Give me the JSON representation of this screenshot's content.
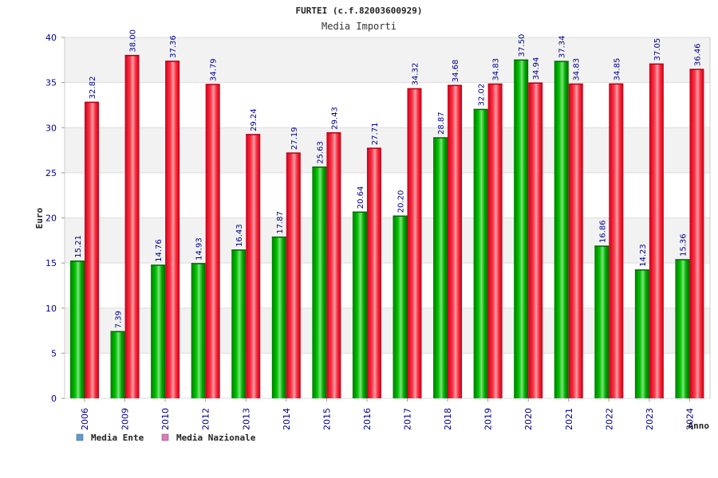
{
  "chart_data": {
    "type": "bar",
    "title": "FURTEI (c.f.82003600929)",
    "subtitle": "Media Importi",
    "ylabel": "Euro",
    "xlabel": "Anno",
    "ylim": [
      0,
      40
    ],
    "yticks": [
      0,
      5,
      10,
      15,
      20,
      25,
      30,
      35,
      40
    ],
    "categories": [
      "2006",
      "2009",
      "2010",
      "2012",
      "2013",
      "2014",
      "2015",
      "2016",
      "2017",
      "2018",
      "2019",
      "2020",
      "2021",
      "2022",
      "2023",
      "2024"
    ],
    "series": [
      {
        "name": "Media Ente",
        "color": "#00aa00",
        "legend_color": "#5b9bd5",
        "values": [
          15.21,
          7.39,
          14.76,
          14.93,
          16.43,
          17.87,
          25.63,
          20.64,
          20.2,
          28.87,
          32.02,
          37.5,
          37.34,
          16.86,
          14.23,
          15.36
        ],
        "labels": [
          "15.21",
          "7.39",
          "14.76",
          "14.93",
          "16.43",
          "17.87",
          "25.63",
          "20.64",
          "20.20",
          "28.87",
          "32.02",
          "37.50",
          "37.34",
          "16.86",
          "14.23",
          "15.36"
        ]
      },
      {
        "name": "Media Nazionale",
        "color": "#ee1122",
        "legend_color": "#e377c2",
        "values": [
          32.82,
          38.0,
          37.36,
          34.79,
          29.24,
          27.19,
          29.43,
          27.71,
          34.32,
          34.68,
          34.83,
          34.94,
          34.83,
          34.85,
          37.05,
          36.46
        ],
        "labels": [
          "32.82",
          "38.00",
          "37.36",
          "34.79",
          "29.24",
          "27.19",
          "29.43",
          "27.71",
          "34.32",
          "34.68",
          "34.83",
          "34.94",
          "34.83",
          "34.85",
          "37.05",
          "36.46"
        ]
      }
    ],
    "grid": true,
    "legend": "bottom-left"
  }
}
